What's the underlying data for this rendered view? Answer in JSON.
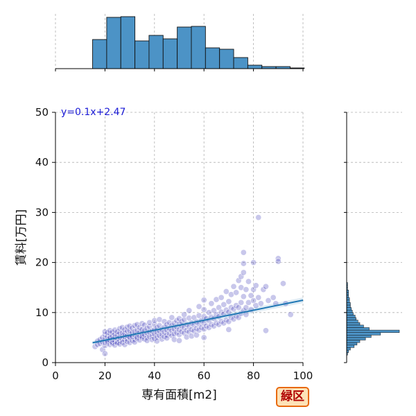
{
  "chart_data": {
    "type": "scatter",
    "xlabel": "専有面積[m2]",
    "ylabel": "賃料[万円]",
    "xlim": [
      0,
      100
    ],
    "ylim": [
      0,
      50
    ],
    "xticks": [
      "0",
      "20",
      "40",
      "60",
      "80",
      "100"
    ],
    "yticks": [
      "0",
      "10",
      "20",
      "30",
      "40",
      "50"
    ],
    "grid": true,
    "annotation": "y=0.1x+2.47",
    "regression": {
      "slope": 0.1,
      "intercept": 2.47,
      "x_range": [
        15,
        100
      ]
    },
    "scatter_points": [
      [
        16,
        3.2
      ],
      [
        17,
        3.6
      ],
      [
        17,
        4.3
      ],
      [
        18,
        3.8
      ],
      [
        18,
        4.6
      ],
      [
        19,
        2.6
      ],
      [
        19,
        5.0
      ],
      [
        19,
        4.1
      ],
      [
        20,
        3.4
      ],
      [
        20,
        4.0
      ],
      [
        20,
        4.8
      ],
      [
        20,
        5.6
      ],
      [
        20,
        6.2
      ],
      [
        20,
        1.8
      ],
      [
        21,
        3.9
      ],
      [
        21,
        4.5
      ],
      [
        21,
        5.2
      ],
      [
        21,
        6.0
      ],
      [
        21,
        4.2
      ],
      [
        22,
        3.6
      ],
      [
        22,
        4.4
      ],
      [
        22,
        5.1
      ],
      [
        22,
        5.8
      ],
      [
        22,
        6.4
      ],
      [
        22,
        4.9
      ],
      [
        23,
        3.8
      ],
      [
        23,
        4.6
      ],
      [
        23,
        5.3
      ],
      [
        23,
        6.1
      ],
      [
        23,
        4.0
      ],
      [
        24,
        4.2
      ],
      [
        24,
        5.0
      ],
      [
        24,
        5.7
      ],
      [
        24,
        3.5
      ],
      [
        24,
        6.5
      ],
      [
        25,
        4.1
      ],
      [
        25,
        4.8
      ],
      [
        25,
        5.5
      ],
      [
        25,
        6.2
      ],
      [
        25,
        3.9
      ],
      [
        26,
        4.4
      ],
      [
        26,
        5.1
      ],
      [
        26,
        5.9
      ],
      [
        26,
        6.8
      ],
      [
        26,
        3.7
      ],
      [
        27,
        4.6
      ],
      [
        27,
        5.3
      ],
      [
        27,
        6.0
      ],
      [
        27,
        7.0
      ],
      [
        27,
        4.0
      ],
      [
        28,
        4.5
      ],
      [
        28,
        5.2
      ],
      [
        28,
        5.8
      ],
      [
        28,
        6.6
      ],
      [
        28,
        3.6
      ],
      [
        29,
        4.7
      ],
      [
        29,
        5.4
      ],
      [
        29,
        6.3
      ],
      [
        29,
        7.1
      ],
      [
        29,
        4.2
      ],
      [
        30,
        4.0
      ],
      [
        30,
        4.9
      ],
      [
        30,
        5.6
      ],
      [
        30,
        6.4
      ],
      [
        30,
        7.3
      ],
      [
        30,
        5.1
      ],
      [
        31,
        4.4
      ],
      [
        31,
        5.2
      ],
      [
        31,
        6.0
      ],
      [
        31,
        6.9
      ],
      [
        32,
        4.6
      ],
      [
        32,
        5.5
      ],
      [
        32,
        6.2
      ],
      [
        32,
        7.4
      ],
      [
        32,
        4.1
      ],
      [
        33,
        4.8
      ],
      [
        33,
        5.7
      ],
      [
        33,
        6.5
      ],
      [
        33,
        7.6
      ],
      [
        33,
        5.0
      ],
      [
        34,
        4.5
      ],
      [
        34,
        5.3
      ],
      [
        34,
        6.1
      ],
      [
        34,
        7.0
      ],
      [
        35,
        4.9
      ],
      [
        35,
        5.8
      ],
      [
        35,
        6.6
      ],
      [
        35,
        7.8
      ],
      [
        35,
        5.2
      ],
      [
        36,
        4.7
      ],
      [
        36,
        5.6
      ],
      [
        36,
        6.4
      ],
      [
        36,
        7.5
      ],
      [
        37,
        5.0
      ],
      [
        37,
        5.9
      ],
      [
        37,
        6.8
      ],
      [
        37,
        4.4
      ],
      [
        38,
        5.2
      ],
      [
        38,
        6.1
      ],
      [
        38,
        7.2
      ],
      [
        38,
        8.0
      ],
      [
        39,
        5.4
      ],
      [
        39,
        6.3
      ],
      [
        39,
        4.6
      ],
      [
        40,
        4.8
      ],
      [
        40,
        5.7
      ],
      [
        40,
        6.6
      ],
      [
        40,
        7.6
      ],
      [
        40,
        8.4
      ],
      [
        41,
        5.1
      ],
      [
        41,
        6.0
      ],
      [
        41,
        7.0
      ],
      [
        41,
        4.3
      ],
      [
        42,
        5.4
      ],
      [
        42,
        6.3
      ],
      [
        42,
        7.4
      ],
      [
        42,
        8.6
      ],
      [
        43,
        5.6
      ],
      [
        43,
        6.6
      ],
      [
        43,
        4.7
      ],
      [
        44,
        5.2
      ],
      [
        44,
        6.1
      ],
      [
        44,
        7.1
      ],
      [
        44,
        8.2
      ],
      [
        45,
        5.5
      ],
      [
        45,
        6.5
      ],
      [
        45,
        7.6
      ],
      [
        45,
        4.9
      ],
      [
        46,
        5.8
      ],
      [
        46,
        6.8
      ],
      [
        46,
        8.0
      ],
      [
        47,
        5.4
      ],
      [
        47,
        6.4
      ],
      [
        47,
        7.4
      ],
      [
        47,
        9.0
      ],
      [
        48,
        5.7
      ],
      [
        48,
        6.7
      ],
      [
        48,
        7.9
      ],
      [
        48,
        4.6
      ],
      [
        49,
        6.0
      ],
      [
        49,
        7.1
      ],
      [
        49,
        8.4
      ],
      [
        50,
        5.6
      ],
      [
        50,
        6.6
      ],
      [
        50,
        7.7
      ],
      [
        50,
        8.8
      ],
      [
        50,
        4.4
      ],
      [
        51,
        6.2
      ],
      [
        51,
        7.3
      ],
      [
        51,
        8.2
      ],
      [
        52,
        5.9
      ],
      [
        52,
        7.0
      ],
      [
        52,
        8.6
      ],
      [
        52,
        9.6
      ],
      [
        53,
        6.4
      ],
      [
        53,
        7.6
      ],
      [
        53,
        5.1
      ],
      [
        54,
        6.1
      ],
      [
        54,
        7.2
      ],
      [
        54,
        8.9
      ],
      [
        54,
        10.4
      ],
      [
        55,
        6.6
      ],
      [
        55,
        7.9
      ],
      [
        55,
        5.3
      ],
      [
        56,
        6.3
      ],
      [
        56,
        7.5
      ],
      [
        56,
        9.0
      ],
      [
        57,
        6.8
      ],
      [
        57,
        8.1
      ],
      [
        57,
        5.5
      ],
      [
        58,
        6.5
      ],
      [
        58,
        7.7
      ],
      [
        58,
        9.4
      ],
      [
        58,
        11.2
      ],
      [
        59,
        7.0
      ],
      [
        59,
        8.4
      ],
      [
        60,
        6.7
      ],
      [
        60,
        7.9
      ],
      [
        60,
        9.2
      ],
      [
        60,
        10.6
      ],
      [
        60,
        12.5
      ],
      [
        60,
        5.0
      ],
      [
        61,
        7.3
      ],
      [
        61,
        8.8
      ],
      [
        62,
        7.0
      ],
      [
        62,
        8.4
      ],
      [
        62,
        10.0
      ],
      [
        63,
        7.6
      ],
      [
        63,
        9.1
      ],
      [
        63,
        11.8
      ],
      [
        64,
        7.3
      ],
      [
        64,
        8.8
      ],
      [
        64,
        10.4
      ],
      [
        65,
        7.9
      ],
      [
        65,
        9.6
      ],
      [
        65,
        12.6
      ],
      [
        66,
        7.6
      ],
      [
        66,
        9.2
      ],
      [
        66,
        11.0
      ],
      [
        67,
        8.2
      ],
      [
        67,
        10.1
      ],
      [
        67,
        13.0
      ],
      [
        68,
        7.9
      ],
      [
        68,
        9.7
      ],
      [
        68,
        11.6
      ],
      [
        69,
        8.5
      ],
      [
        69,
        10.5
      ],
      [
        69,
        14.2
      ],
      [
        70,
        8.2
      ],
      [
        70,
        10.1
      ],
      [
        70,
        12.2
      ],
      [
        70,
        6.6
      ],
      [
        71,
        9.0
      ],
      [
        71,
        11.0
      ],
      [
        71,
        13.6
      ],
      [
        72,
        8.7
      ],
      [
        72,
        10.7
      ],
      [
        72,
        15.2
      ],
      [
        73,
        9.3
      ],
      [
        73,
        11.4
      ],
      [
        73,
        14.0
      ],
      [
        74,
        9.0
      ],
      [
        74,
        11.0
      ],
      [
        74,
        16.4
      ],
      [
        75,
        9.8
      ],
      [
        75,
        12.0
      ],
      [
        75,
        15.0
      ],
      [
        75,
        17.2
      ],
      [
        76,
        10.4
      ],
      [
        76,
        13.2
      ],
      [
        76,
        18.0
      ],
      [
        76,
        19.8
      ],
      [
        76,
        22.0
      ],
      [
        77,
        11.0
      ],
      [
        77,
        14.6
      ],
      [
        77,
        9.6
      ],
      [
        78,
        12.0
      ],
      [
        78,
        16.2
      ],
      [
        79,
        10.6
      ],
      [
        79,
        13.4
      ],
      [
        80,
        12.4
      ],
      [
        80,
        14.6
      ],
      [
        80,
        20.0
      ],
      [
        81,
        11.4
      ],
      [
        81,
        15.4
      ],
      [
        82,
        13.0
      ],
      [
        82,
        29.0
      ],
      [
        83,
        11.8
      ],
      [
        84,
        14.6
      ],
      [
        85,
        6.4
      ],
      [
        85,
        15.2
      ],
      [
        86,
        12.4
      ],
      [
        88,
        13.0
      ],
      [
        89,
        11.8
      ],
      [
        90,
        20.8
      ],
      [
        90,
        20.2
      ],
      [
        92,
        15.8
      ],
      [
        93,
        11.8
      ],
      [
        95,
        9.6
      ]
    ],
    "histogram_x": {
      "bin_edges": [
        15,
        20.7,
        26.4,
        32.1,
        37.8,
        43.5,
        49.2,
        54.9,
        60.6,
        66.3,
        72,
        77.7,
        83.4,
        89.1,
        94.8,
        100.5
      ],
      "counts": [
        42,
        74,
        75,
        40,
        48,
        43,
        60,
        61,
        30,
        28,
        16,
        5,
        3,
        3,
        1
      ]
    },
    "histogram_y": {
      "bin_edges": [
        1.5,
        2.0,
        2.5,
        3.0,
        3.5,
        4.0,
        4.5,
        5.0,
        5.5,
        6.0,
        6.5,
        7.0,
        7.5,
        8.0,
        8.5,
        9.0,
        9.5,
        10.0,
        10.5,
        11.0,
        11.5,
        12.0,
        12.5,
        13.0,
        13.5,
        14.0,
        14.5,
        15.0,
        15.5,
        16.0
      ],
      "counts": [
        1,
        2,
        4,
        8,
        11,
        14,
        20,
        26,
        36,
        56,
        24,
        18,
        14,
        12,
        10,
        9,
        7,
        6,
        5,
        4,
        4,
        3,
        3,
        2,
        2,
        2,
        1,
        1,
        1,
        1
      ]
    }
  },
  "badge": "緑区",
  "colors": {
    "point": "#3a36b8",
    "line": "#1f77b4",
    "bar": "#4c93c6",
    "equation": "#1a1ad6"
  }
}
